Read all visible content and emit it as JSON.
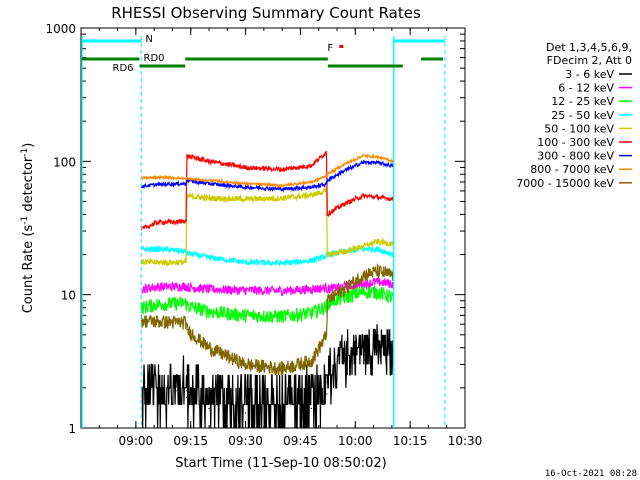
{
  "chart_data": {
    "type": "line",
    "title": "RHESSI Observing Summary Count Rates",
    "xlabel": "Start Time (11-Sep-10 08:50:02)",
    "ylabel": "Count Rate (s⁻¹ detector⁻¹)",
    "ylabel_parts": {
      "base": "Count Rate (s",
      "sup1": "-1",
      "mid": " detector",
      "sup2": "-1",
      "end": ")"
    },
    "x_unit": "minutes since 08:50:02",
    "xlim": [
      -5,
      100
    ],
    "ylim": [
      1,
      1000
    ],
    "y_scale": "log",
    "x_ticks": [
      {
        "x": 10,
        "label": "09:00"
      },
      {
        "x": 25,
        "label": "09:15"
      },
      {
        "x": 40,
        "label": "09:30"
      },
      {
        "x": 55,
        "label": "09:45"
      },
      {
        "x": 70,
        "label": "10:00"
      },
      {
        "x": 85,
        "label": "10:15"
      },
      {
        "x": 100,
        "label": "10:30"
      }
    ],
    "y_ticks": [
      {
        "y": 1,
        "label": "1"
      },
      {
        "y": 10,
        "label": "10"
      },
      {
        "y": 100,
        "label": "100"
      },
      {
        "y": 1000,
        "label": "1000"
      }
    ],
    "grid": false,
    "legend_position": "right",
    "legend_header": [
      "Det 1,3,4,5,6,9,",
      "FDecim 2, Att 0"
    ],
    "footer_date": "16-Oct-2021 08:28",
    "data_gaps": [
      [
        -5,
        11.5
      ],
      [
        23.8,
        23.9
      ],
      [
        62.2,
        62.3
      ],
      [
        80.5,
        100
      ]
    ],
    "series": [
      {
        "name": "3 - 6 keV",
        "color": "#000000",
        "noise": 0.35,
        "points": [
          [
            11.5,
            1.6
          ],
          [
            16,
            1.8
          ],
          [
            21,
            1.9
          ],
          [
            23.8,
            1.9
          ],
          [
            23.9,
            1.7
          ],
          [
            30,
            1.4
          ],
          [
            40,
            1.3
          ],
          [
            50,
            1.3
          ],
          [
            58,
            1.4
          ],
          [
            62.2,
            1.8
          ],
          [
            62.3,
            2.2
          ],
          [
            67,
            3.2
          ],
          [
            72,
            4.0
          ],
          [
            76,
            3.8
          ],
          [
            80.5,
            3.4
          ]
        ]
      },
      {
        "name": "6 - 12 keV",
        "color": "#ff00ff",
        "noise": 0.08,
        "points": [
          [
            11.5,
            11
          ],
          [
            16,
            11.5
          ],
          [
            21,
            11.5
          ],
          [
            23.8,
            11.6
          ],
          [
            23.9,
            11.4
          ],
          [
            30,
            11
          ],
          [
            40,
            10.8
          ],
          [
            50,
            10.7
          ],
          [
            58,
            11
          ],
          [
            62.2,
            11.3
          ],
          [
            62.3,
            11
          ],
          [
            67,
            11.5
          ],
          [
            72,
            12
          ],
          [
            76,
            12.5
          ],
          [
            80.5,
            12
          ]
        ]
      },
      {
        "name": "12 - 25 keV",
        "color": "#00ff00",
        "noise": 0.12,
        "points": [
          [
            11.5,
            8
          ],
          [
            16,
            8.5
          ],
          [
            21,
            8.6
          ],
          [
            23.8,
            8.7
          ],
          [
            23.9,
            8.3
          ],
          [
            30,
            7.5
          ],
          [
            40,
            7.0
          ],
          [
            50,
            6.9
          ],
          [
            58,
            7.3
          ],
          [
            62.2,
            8.2
          ],
          [
            62.3,
            8.8
          ],
          [
            67,
            9.5
          ],
          [
            72,
            10.5
          ],
          [
            76,
            10.5
          ],
          [
            80.5,
            9.5
          ]
        ]
      },
      {
        "name": "25 - 50 keV",
        "color": "#00ffff",
        "noise": 0.05,
        "points": [
          [
            11.5,
            22
          ],
          [
            16,
            22
          ],
          [
            21,
            21.5
          ],
          [
            23.8,
            21
          ],
          [
            23.9,
            20.5
          ],
          [
            30,
            19
          ],
          [
            40,
            17.5
          ],
          [
            50,
            17.2
          ],
          [
            58,
            18
          ],
          [
            62.2,
            19.5
          ],
          [
            62.3,
            20
          ],
          [
            67,
            21
          ],
          [
            72,
            22
          ],
          [
            76,
            22
          ],
          [
            80.5,
            20
          ]
        ]
      },
      {
        "name": "50 - 100 keV",
        "color": "#cccc00",
        "noise": 0.05,
        "points": [
          [
            11.5,
            17.5
          ],
          [
            16,
            17.5
          ],
          [
            21,
            17.5
          ],
          [
            23.8,
            17.5
          ],
          [
            23.9,
            55
          ],
          [
            30,
            53
          ],
          [
            40,
            52
          ],
          [
            50,
            53
          ],
          [
            58,
            56
          ],
          [
            62.2,
            60
          ],
          [
            62.3,
            20
          ],
          [
            67,
            21
          ],
          [
            72,
            23
          ],
          [
            76,
            25
          ],
          [
            80.5,
            24
          ]
        ]
      },
      {
        "name": "100 - 300 keV",
        "color": "#ff0000",
        "noise": 0.04,
        "points": [
          [
            11.5,
            31
          ],
          [
            16,
            35
          ],
          [
            21,
            35
          ],
          [
            23.8,
            36
          ],
          [
            23.9,
            110
          ],
          [
            30,
            100
          ],
          [
            40,
            90
          ],
          [
            50,
            87
          ],
          [
            58,
            93
          ],
          [
            62.2,
            118
          ],
          [
            62.3,
            40
          ],
          [
            67,
            48
          ],
          [
            72,
            55
          ],
          [
            76,
            54
          ],
          [
            80.5,
            52
          ]
        ]
      },
      {
        "name": "300 - 800 keV",
        "color": "#0000ff",
        "noise": 0.03,
        "points": [
          [
            11.5,
            65
          ],
          [
            16,
            67
          ],
          [
            21,
            68
          ],
          [
            23.8,
            68
          ],
          [
            23.9,
            72
          ],
          [
            30,
            68
          ],
          [
            40,
            64
          ],
          [
            50,
            62
          ],
          [
            58,
            64
          ],
          [
            62.2,
            68
          ],
          [
            62.3,
            72
          ],
          [
            67,
            85
          ],
          [
            72,
            98
          ],
          [
            76,
            98
          ],
          [
            80.5,
            92
          ]
        ]
      },
      {
        "name": "800 - 7000 keV",
        "color": "#ff8800",
        "noise": 0.02,
        "points": [
          [
            11.5,
            75
          ],
          [
            16,
            76
          ],
          [
            21,
            75
          ],
          [
            23.8,
            74
          ],
          [
            23.9,
            74
          ],
          [
            30,
            72
          ],
          [
            40,
            68
          ],
          [
            50,
            66
          ],
          [
            58,
            70
          ],
          [
            62.2,
            78
          ],
          [
            62.3,
            80
          ],
          [
            67,
            95
          ],
          [
            72,
            110
          ],
          [
            76,
            108
          ],
          [
            80.5,
            100
          ]
        ]
      },
      {
        "name": "7000 - 15000 keV",
        "color": "#806600",
        "noise": 0.12,
        "points": [
          [
            11.5,
            6.4
          ],
          [
            16,
            6.3
          ],
          [
            21,
            6.2
          ],
          [
            23.8,
            6.2
          ],
          [
            23.9,
            5.5
          ],
          [
            30,
            4.0
          ],
          [
            40,
            3.0
          ],
          [
            50,
            2.8
          ],
          [
            58,
            3.2
          ],
          [
            62.2,
            5.0
          ],
          [
            62.3,
            9.0
          ],
          [
            67,
            11
          ],
          [
            72,
            14
          ],
          [
            76,
            15
          ],
          [
            80.5,
            14
          ]
        ]
      }
    ],
    "flags": {
      "night": {
        "label": "N",
        "color": "#00ffff",
        "segments": [
          [
            -5,
            11.5
          ],
          [
            80.5,
            94.5
          ]
        ]
      },
      "night_markers": [
        11.5,
        80.5,
        94.5
      ],
      "saa_or_boundary": {
        "color": "#00ffff",
        "lines": [
          -5,
          80.5
        ]
      },
      "rd6": {
        "label": "RD6",
        "color": "#008000",
        "segments": [
          [
            -5,
            11
          ]
        ]
      },
      "rd0": {
        "label": "RD0",
        "color": "#008000",
        "segments": [
          [
            11,
            23.5
          ],
          [
            62.5,
            83
          ]
        ]
      },
      "rd_high": {
        "color": "#008000",
        "segments": [
          [
            23.5,
            62.5
          ],
          [
            88,
            94
          ]
        ]
      },
      "flare": {
        "label": "F",
        "color": "#ff0000",
        "x": 64
      }
    }
  }
}
